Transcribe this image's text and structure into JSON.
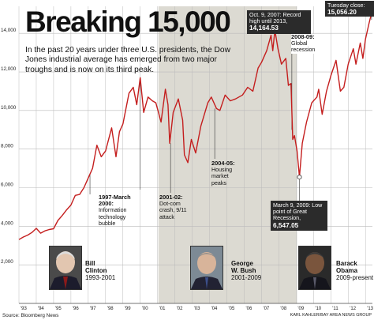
{
  "headline": "Breaking 15,000",
  "intro": "In the past 20 years under three U.S. presidents, the Dow Jones industrial average has emerged from two major troughs and is now on its third peak.",
  "annotations": {
    "peak_2007": {
      "date": "Oct. 9, 2007: ",
      "text": "Record high until 2013, ",
      "value": "14,164.53"
    },
    "recession_2008": {
      "date": "2008-09:",
      "text": "Global recession"
    },
    "close_2013": {
      "date": "Tuesday close:",
      "value": "15,056.20"
    },
    "bubble_1997": {
      "date": "1997-March 2000:",
      "text": "Information technology bubble"
    },
    "crash_2001": {
      "date": "2001-02:",
      "text": "Dot-com crash, 9/11 attack"
    },
    "housing_2004": {
      "date": "2004-05:",
      "text": "Housing market peaks"
    },
    "low_2009": {
      "date": "March 9, 2009: ",
      "text": "Low point of Great Recession, ",
      "value": "6,547.05"
    }
  },
  "presidents": [
    {
      "first": "Bill",
      "last": "Clinton",
      "years": "1993-2001"
    },
    {
      "first": "George",
      "last": "W. Bush",
      "years": "2001-2009"
    },
    {
      "first": "Barack",
      "last": "Obama",
      "years": "2009-present"
    }
  ],
  "source": "Source: Bloomberg News",
  "credit": "KARL KAHLER/BAY AREA NEWS GROUP",
  "colors": {
    "line": "#c41e1e",
    "bush_shade": "#dcdad2",
    "grid": "#bbbbbb",
    "text": "#111111",
    "marker": "#ffffff"
  },
  "chart_data": {
    "type": "line",
    "title": "Breaking 15,000",
    "series": [
      {
        "values": [
          [
            1993.0,
            3310
          ],
          [
            1993.25,
            3440
          ],
          [
            1993.5,
            3540
          ],
          [
            1993.75,
            3680
          ],
          [
            1994.0,
            3890
          ],
          [
            1994.25,
            3640
          ],
          [
            1994.5,
            3760
          ],
          [
            1994.75,
            3830
          ],
          [
            1995.0,
            3870
          ],
          [
            1995.25,
            4300
          ],
          [
            1995.5,
            4560
          ],
          [
            1995.75,
            4850
          ],
          [
            1996.0,
            5100
          ],
          [
            1996.25,
            5600
          ],
          [
            1996.5,
            5650
          ],
          [
            1996.75,
            6000
          ],
          [
            1997.0,
            6500
          ],
          [
            1997.25,
            7000
          ],
          [
            1997.5,
            8200
          ],
          [
            1997.75,
            7600
          ],
          [
            1998.0,
            7900
          ],
          [
            1998.35,
            9100
          ],
          [
            1998.6,
            7600
          ],
          [
            1998.8,
            8900
          ],
          [
            1999.0,
            9300
          ],
          [
            1999.35,
            10900
          ],
          [
            1999.6,
            11200
          ],
          [
            1999.8,
            10300
          ],
          [
            2000.0,
            11700
          ],
          [
            2000.2,
            9900
          ],
          [
            2000.45,
            10700
          ],
          [
            2000.7,
            10500
          ],
          [
            2000.9,
            10400
          ],
          [
            2001.2,
            9400
          ],
          [
            2001.45,
            11100
          ],
          [
            2001.6,
            10300
          ],
          [
            2001.7,
            8300
          ],
          [
            2001.9,
            9900
          ],
          [
            2002.2,
            10600
          ],
          [
            2002.45,
            9500
          ],
          [
            2002.55,
            7700
          ],
          [
            2002.75,
            7300
          ],
          [
            2002.95,
            8500
          ],
          [
            2003.2,
            7800
          ],
          [
            2003.5,
            9200
          ],
          [
            2003.9,
            10400
          ],
          [
            2004.1,
            10700
          ],
          [
            2004.4,
            10100
          ],
          [
            2004.6,
            10000
          ],
          [
            2004.9,
            10800
          ],
          [
            2005.2,
            10500
          ],
          [
            2005.5,
            10600
          ],
          [
            2005.9,
            10800
          ],
          [
            2006.2,
            11200
          ],
          [
            2006.5,
            11000
          ],
          [
            2006.8,
            12200
          ],
          [
            2007.0,
            12500
          ],
          [
            2007.3,
            13100
          ],
          [
            2007.55,
            13900
          ],
          [
            2007.65,
            13100
          ],
          [
            2007.77,
            14164.53
          ],
          [
            2007.95,
            13200
          ],
          [
            2008.15,
            12400
          ],
          [
            2008.4,
            12700
          ],
          [
            2008.55,
            11300
          ],
          [
            2008.7,
            11400
          ],
          [
            2008.8,
            8500
          ],
          [
            2008.9,
            8700
          ],
          [
            2009.05,
            7900
          ],
          [
            2009.19,
            6547.05
          ],
          [
            2009.35,
            8300
          ],
          [
            2009.6,
            9400
          ],
          [
            2009.9,
            10400
          ],
          [
            2010.2,
            10700
          ],
          [
            2010.3,
            11100
          ],
          [
            2010.5,
            9800
          ],
          [
            2010.75,
            11000
          ],
          [
            2011.0,
            11800
          ],
          [
            2011.3,
            12600
          ],
          [
            2011.55,
            11000
          ],
          [
            2011.75,
            11200
          ],
          [
            2012.0,
            12400
          ],
          [
            2012.3,
            13200
          ],
          [
            2012.45,
            12400
          ],
          [
            2012.7,
            13500
          ],
          [
            2012.85,
            12700
          ],
          [
            2013.0,
            13700
          ],
          [
            2013.2,
            14500
          ],
          [
            2013.35,
            15056.2
          ]
        ]
      }
    ],
    "x_ticks": [
      "'93",
      "'94",
      "'95",
      "'96",
      "'97",
      "'98",
      "'99",
      "'00",
      "'01",
      "'02",
      "'03",
      "'04",
      "'05",
      "'06",
      "'07",
      "'08",
      "'09",
      "'10",
      "'11",
      "'12",
      "'13"
    ],
    "y_ticks": [
      "2,000",
      "4,000",
      "6,000",
      "8,000",
      "10,000",
      "12,000",
      "14,000"
    ],
    "xlim": [
      1993,
      2013.4
    ],
    "ylim": [
      0,
      15400
    ],
    "shaded_range": [
      2001.05,
      2009.05
    ],
    "grid": true,
    "legend": "none"
  }
}
